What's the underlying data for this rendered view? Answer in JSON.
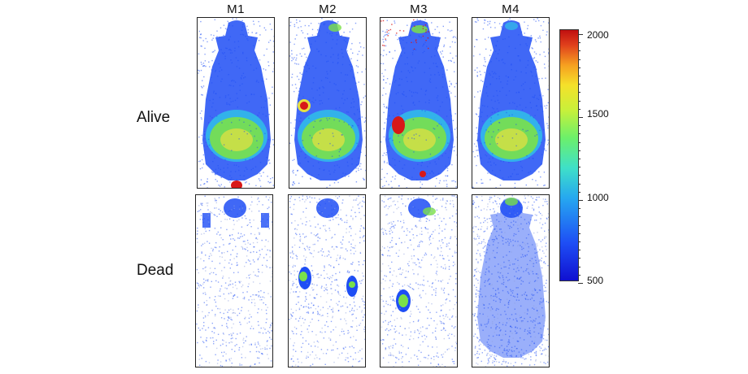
{
  "columns": [
    "M1",
    "M2",
    "M3",
    "M4"
  ],
  "rows": [
    "Alive",
    "Dead"
  ],
  "colorbar": {
    "tick_labels": [
      "2000",
      "1500",
      "1000",
      "500"
    ],
    "colors": [
      "#c01010",
      "#f5e12a",
      "#6cf06a",
      "#26a8f0",
      "#1010d0"
    ]
  },
  "panel_colors": {
    "blue": "#1e4ef5",
    "cyan": "#30c0e8",
    "green": "#7ae04a",
    "yellow": "#e8e040",
    "red": "#d81818"
  }
}
